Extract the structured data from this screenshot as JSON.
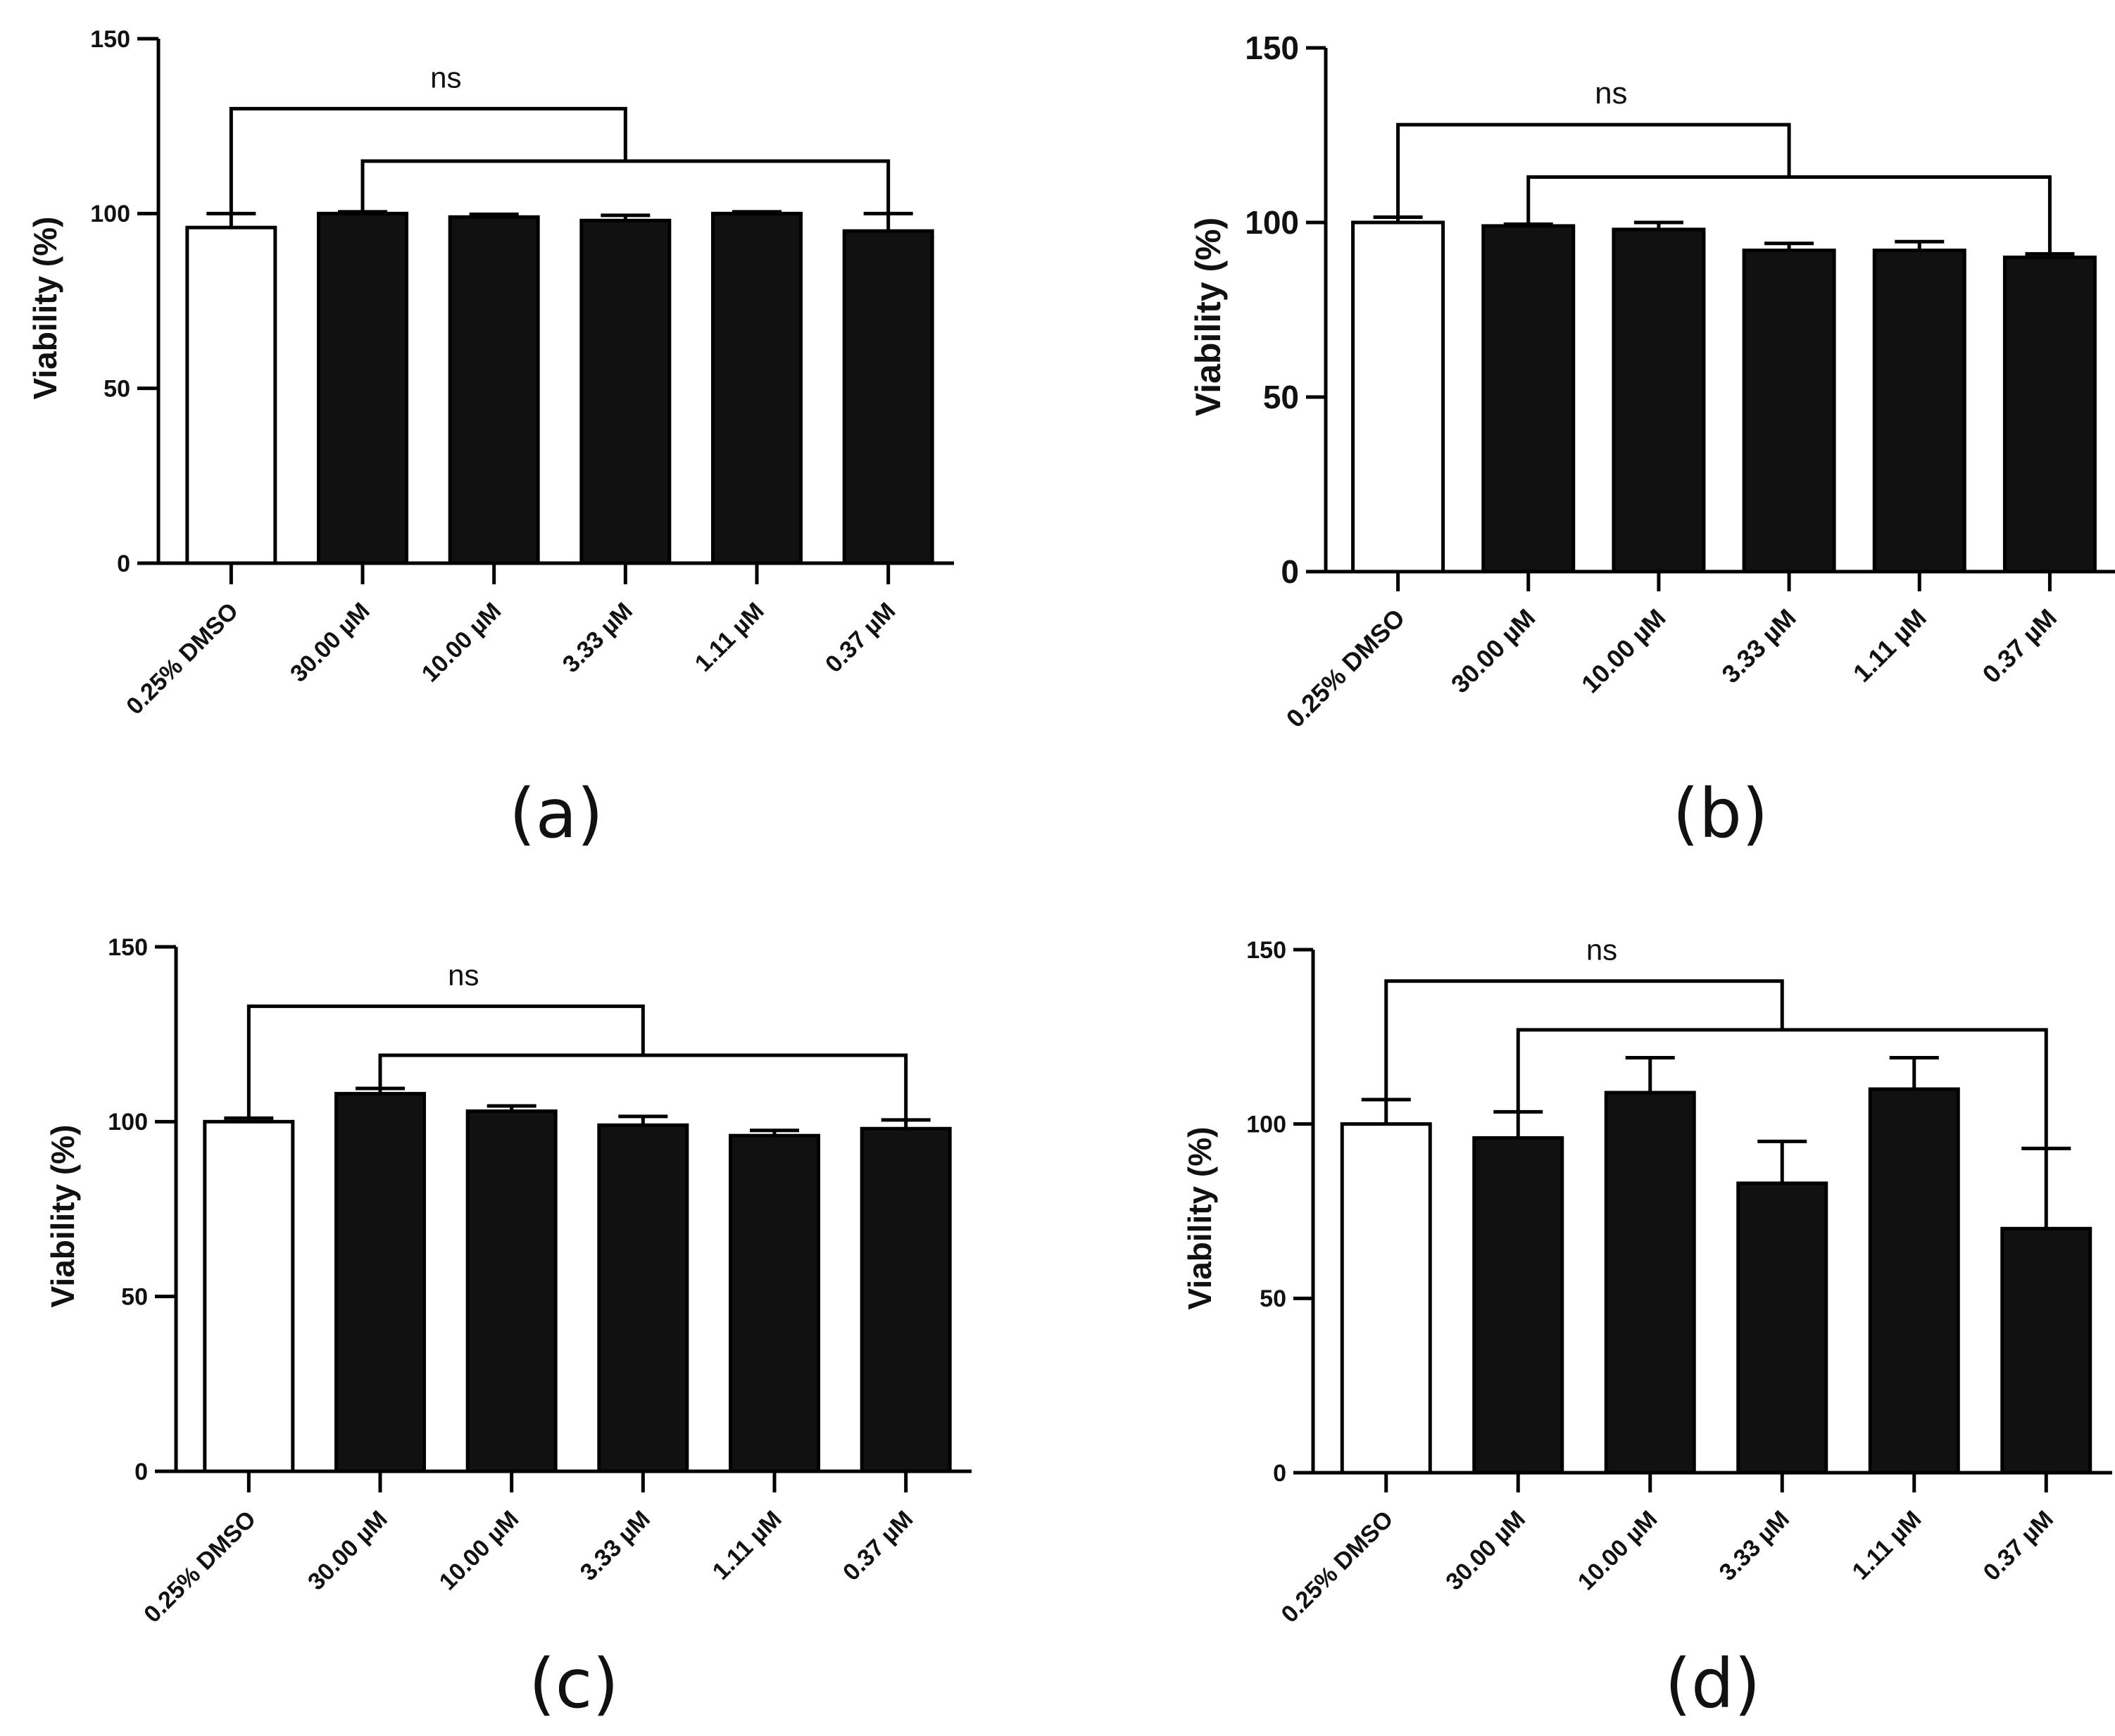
{
  "chart_data": [
    {
      "type": "bar",
      "panel_label": "(a)",
      "categories": [
        "0.25% DMSO",
        "30.00 µM",
        "10.00 µM",
        "3.33 µM",
        "1.11 µM",
        "0.37 µM"
      ],
      "values": [
        96,
        100,
        99,
        98,
        100,
        95
      ],
      "errors": [
        4,
        0.5,
        0.8,
        1.5,
        0.5,
        5
      ],
      "ylabel": "Viability (%)",
      "ylim": [
        0,
        150
      ],
      "yticks": [
        0,
        50,
        100,
        150
      ],
      "annotation": "ns",
      "brackets": {
        "outer": 130,
        "inner": 115
      }
    },
    {
      "type": "bar",
      "panel_label": "(b)",
      "categories": [
        "0.25% DMSO",
        "30.00 µM",
        "10.00 µM",
        "3.33 µM",
        "1.11 µM",
        "0.37 µM"
      ],
      "values": [
        100,
        99,
        98,
        92,
        92,
        90
      ],
      "errors": [
        1.5,
        0.5,
        2,
        2,
        2.5,
        1
      ],
      "ylabel": "Viability (%)",
      "ylim": [
        0,
        150
      ],
      "yticks": [
        0,
        50,
        100,
        150
      ],
      "annotation": "ns",
      "brackets": {
        "outer": 128,
        "inner": 113
      }
    },
    {
      "type": "bar",
      "panel_label": "(c)",
      "categories": [
        "0.25% DMSO",
        "30.00 µM",
        "10.00 µM",
        "3.33 µM",
        "1.11 µM",
        "0.37 µM"
      ],
      "values": [
        100,
        108,
        103,
        99,
        96,
        98
      ],
      "errors": [
        1,
        1.5,
        1.5,
        2.5,
        1.5,
        2.5
      ],
      "ylabel": "Viability (%)",
      "ylim": [
        0,
        150
      ],
      "yticks": [
        0,
        50,
        100,
        150
      ],
      "annotation": "ns",
      "brackets": {
        "outer": 133,
        "inner": 119
      }
    },
    {
      "type": "bar",
      "panel_label": "(d)",
      "categories": [
        "0.25% DMSO",
        "30.00 µM",
        "10.00 µM",
        "3.33 µM",
        "1.11 µM",
        "0.37 µM"
      ],
      "values": [
        100,
        96,
        109,
        83,
        110,
        70
      ],
      "errors": [
        7,
        7.5,
        10,
        12,
        9,
        23
      ],
      "ylabel": "Viability (%)",
      "ylim": [
        0,
        150
      ],
      "yticks": [
        0,
        50,
        100,
        150
      ],
      "annotation": "ns",
      "brackets": {
        "outer": 141,
        "inner": 127
      }
    }
  ]
}
